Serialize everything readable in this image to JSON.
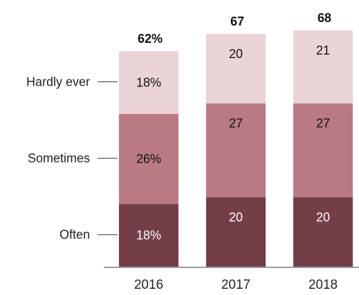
{
  "chart_data": {
    "type": "bar",
    "stacked": true,
    "categories": [
      "2016",
      "2017",
      "2018"
    ],
    "totals": [
      "62%",
      "67",
      "68"
    ],
    "total_values": [
      62,
      67,
      68
    ],
    "series": [
      {
        "name": "Often",
        "values": [
          18,
          20,
          20
        ],
        "labels": [
          "18%",
          "20",
          "20"
        ],
        "color": "#743E49",
        "text_color": "#ffffff"
      },
      {
        "name": "Sometimes",
        "values": [
          26,
          27,
          27
        ],
        "labels": [
          "26%",
          "27",
          "27"
        ],
        "color": "#B97A84",
        "text_color": "#111111"
      },
      {
        "name": "Hardly ever",
        "values": [
          18,
          20,
          21
        ],
        "labels": [
          "18%",
          "20",
          "21"
        ],
        "color": "#EBD4D7",
        "text_color": "#111111"
      }
    ],
    "ylim": [
      0,
      68
    ],
    "grid": false,
    "legend": "left",
    "baseline_color": "#9a9a9a"
  }
}
